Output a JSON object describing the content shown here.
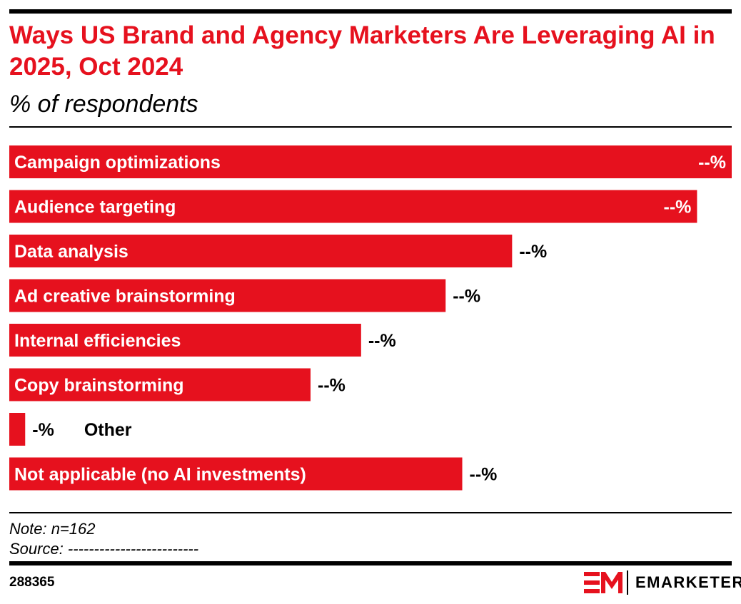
{
  "title": "Ways US Brand and Agency Marketers Are Leveraging AI in 2025, Oct 2024",
  "subtitle": "% of respondents",
  "note": "Note: n=162",
  "source": "Source: -------------------------",
  "chart_id": "288365",
  "brand": "EMARKETER",
  "colors": {
    "bar": "#e6111e",
    "title": "#e6111e",
    "text": "#000000"
  },
  "chart_data": {
    "type": "bar",
    "orientation": "horizontal",
    "title": "Ways US Brand and Agency Marketers Are Leveraging AI in 2025, Oct 2024",
    "subtitle": "% of respondents",
    "categories": [
      "Campaign optimizations",
      "Audience targeting",
      "Data analysis",
      "Ad creative brainstorming",
      "Internal efficiencies",
      "Copy brainstorming",
      "Other",
      "Not applicable (no AI investments)"
    ],
    "value_labels": [
      "--%",
      "--%",
      "--%",
      "--%",
      "--%",
      "--%",
      "-%",
      "--%"
    ],
    "values": [
      100,
      95.2,
      69.6,
      60.4,
      48.7,
      41.7,
      2.2,
      62.7
    ],
    "xlim": [
      0,
      100
    ],
    "grid": false,
    "legend": "none"
  }
}
